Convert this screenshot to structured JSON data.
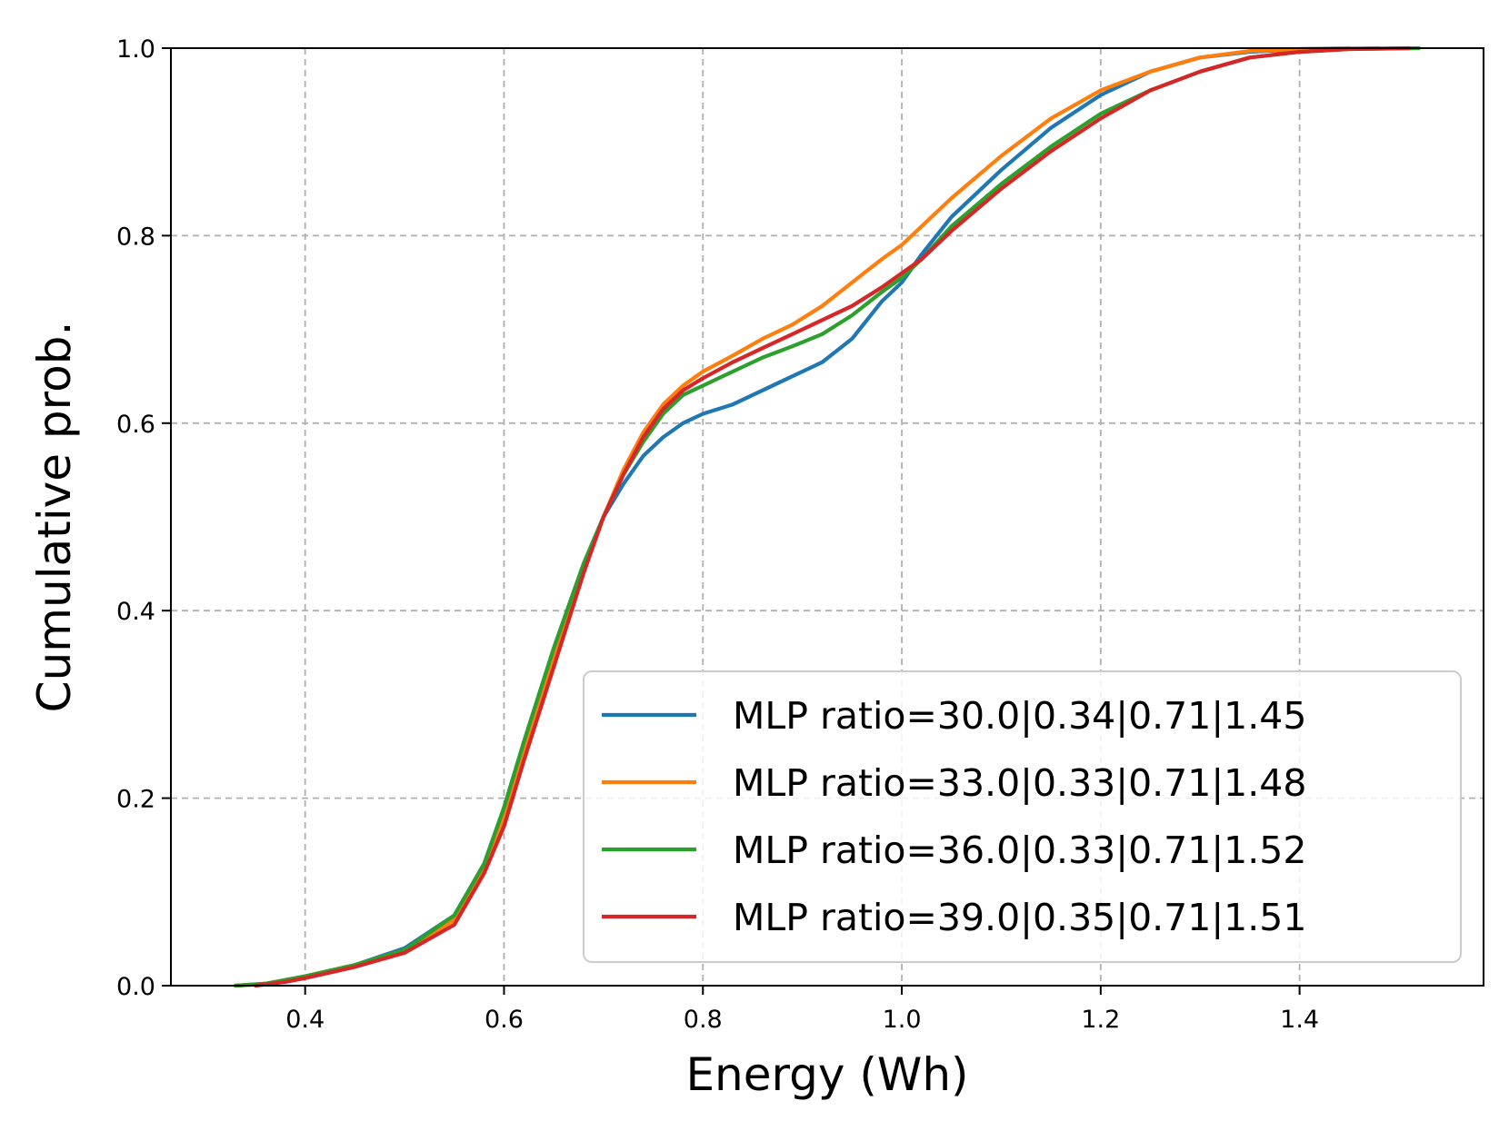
{
  "chart_data": {
    "type": "line",
    "title": "",
    "xlabel": "Energy (Wh)",
    "ylabel": "Cumulative prob.",
    "xlim": [
      0.265,
      1.585
    ],
    "ylim": [
      0.0,
      1.0
    ],
    "xticks": [
      "0.4",
      "0.6",
      "0.8",
      "1.0",
      "1.2",
      "1.4"
    ],
    "xtick_values": [
      0.4,
      0.6,
      0.8,
      1.0,
      1.2,
      1.4
    ],
    "yticks": [
      "0.0",
      "0.2",
      "0.4",
      "0.6",
      "0.8",
      "1.0"
    ],
    "ytick_values": [
      0.0,
      0.2,
      0.4,
      0.6,
      0.8,
      1.0
    ],
    "grid": true,
    "legend_position": "lower-right",
    "series": [
      {
        "name": "MLP ratio=30.0|0.34|0.71|1.45",
        "color": "#1f77b4",
        "x": [
          0.33,
          0.36,
          0.4,
          0.45,
          0.5,
          0.55,
          0.58,
          0.6,
          0.62,
          0.65,
          0.68,
          0.7,
          0.72,
          0.74,
          0.76,
          0.78,
          0.8,
          0.83,
          0.86,
          0.89,
          0.92,
          0.95,
          0.98,
          1.0,
          1.02,
          1.05,
          1.1,
          1.15,
          1.2,
          1.25,
          1.3,
          1.35,
          1.4,
          1.45
        ],
        "y": [
          0.0,
          0.002,
          0.01,
          0.022,
          0.04,
          0.075,
          0.13,
          0.19,
          0.26,
          0.36,
          0.45,
          0.5,
          0.535,
          0.565,
          0.585,
          0.6,
          0.61,
          0.62,
          0.635,
          0.65,
          0.665,
          0.69,
          0.73,
          0.75,
          0.78,
          0.82,
          0.87,
          0.915,
          0.95,
          0.975,
          0.99,
          0.996,
          0.999,
          1.0
        ]
      },
      {
        "name": "MLP ratio=33.0|0.33|0.71|1.48",
        "color": "#ff7f0e",
        "x": [
          0.33,
          0.36,
          0.4,
          0.45,
          0.5,
          0.55,
          0.58,
          0.6,
          0.62,
          0.65,
          0.68,
          0.7,
          0.72,
          0.74,
          0.76,
          0.78,
          0.8,
          0.83,
          0.86,
          0.89,
          0.92,
          0.95,
          0.98,
          1.0,
          1.02,
          1.05,
          1.1,
          1.15,
          1.2,
          1.25,
          1.3,
          1.35,
          1.4,
          1.48
        ],
        "y": [
          0.0,
          0.002,
          0.01,
          0.022,
          0.038,
          0.07,
          0.125,
          0.18,
          0.25,
          0.35,
          0.445,
          0.5,
          0.55,
          0.59,
          0.62,
          0.64,
          0.655,
          0.672,
          0.69,
          0.705,
          0.725,
          0.75,
          0.775,
          0.79,
          0.81,
          0.84,
          0.885,
          0.925,
          0.955,
          0.975,
          0.99,
          0.997,
          0.999,
          1.0
        ]
      },
      {
        "name": "MLP ratio=36.0|0.33|0.71|1.52",
        "color": "#2ca02c",
        "x": [
          0.33,
          0.36,
          0.4,
          0.45,
          0.5,
          0.55,
          0.58,
          0.6,
          0.62,
          0.65,
          0.68,
          0.7,
          0.72,
          0.74,
          0.76,
          0.78,
          0.8,
          0.83,
          0.86,
          0.89,
          0.92,
          0.95,
          0.98,
          1.0,
          1.02,
          1.05,
          1.1,
          1.15,
          1.2,
          1.25,
          1.3,
          1.35,
          1.4,
          1.45,
          1.52
        ],
        "y": [
          0.0,
          0.002,
          0.01,
          0.022,
          0.038,
          0.075,
          0.13,
          0.19,
          0.26,
          0.36,
          0.45,
          0.5,
          0.545,
          0.58,
          0.61,
          0.63,
          0.64,
          0.655,
          0.67,
          0.682,
          0.695,
          0.715,
          0.74,
          0.755,
          0.775,
          0.81,
          0.855,
          0.895,
          0.93,
          0.955,
          0.975,
          0.99,
          0.996,
          0.999,
          1.0
        ]
      },
      {
        "name": "MLP ratio=39.0|0.35|0.71|1.51",
        "color": "#d62728",
        "x": [
          0.35,
          0.38,
          0.4,
          0.45,
          0.5,
          0.55,
          0.58,
          0.6,
          0.62,
          0.65,
          0.68,
          0.7,
          0.72,
          0.74,
          0.76,
          0.78,
          0.8,
          0.83,
          0.86,
          0.89,
          0.92,
          0.95,
          0.98,
          1.0,
          1.02,
          1.05,
          1.1,
          1.15,
          1.2,
          1.25,
          1.3,
          1.35,
          1.4,
          1.45,
          1.51
        ],
        "y": [
          0.0,
          0.004,
          0.008,
          0.02,
          0.035,
          0.065,
          0.12,
          0.17,
          0.24,
          0.34,
          0.44,
          0.5,
          0.545,
          0.585,
          0.615,
          0.635,
          0.648,
          0.665,
          0.68,
          0.695,
          0.71,
          0.725,
          0.745,
          0.76,
          0.775,
          0.805,
          0.85,
          0.89,
          0.925,
          0.955,
          0.975,
          0.99,
          0.996,
          0.999,
          1.0
        ]
      }
    ]
  }
}
